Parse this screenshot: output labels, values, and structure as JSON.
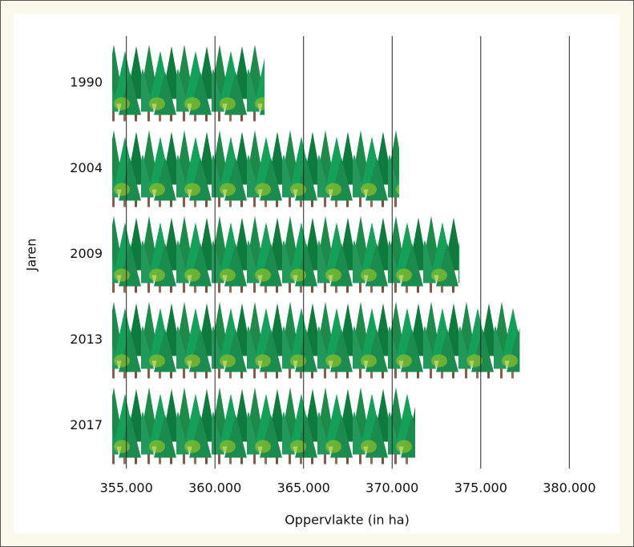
{
  "chart_data": {
    "type": "pictorial-bar",
    "categories": [
      "1990",
      "2004",
      "2009",
      "2013",
      "2017"
    ],
    "values": [
      362800,
      370400,
      373800,
      377200,
      371300
    ],
    "xlabel": "Oppervlakte (in ha)",
    "ylabel": "Jaren",
    "xlim": [
      354200,
      382700
    ],
    "xticks": [
      {
        "value": 355000,
        "label": "355.000"
      },
      {
        "value": 360000,
        "label": "360.000"
      },
      {
        "value": 365000,
        "label": "365.000"
      },
      {
        "value": 370000,
        "label": "370.000"
      },
      {
        "value": 375000,
        "label": "375.000"
      },
      {
        "value": 380000,
        "label": "380.000"
      }
    ],
    "grid": true
  }
}
